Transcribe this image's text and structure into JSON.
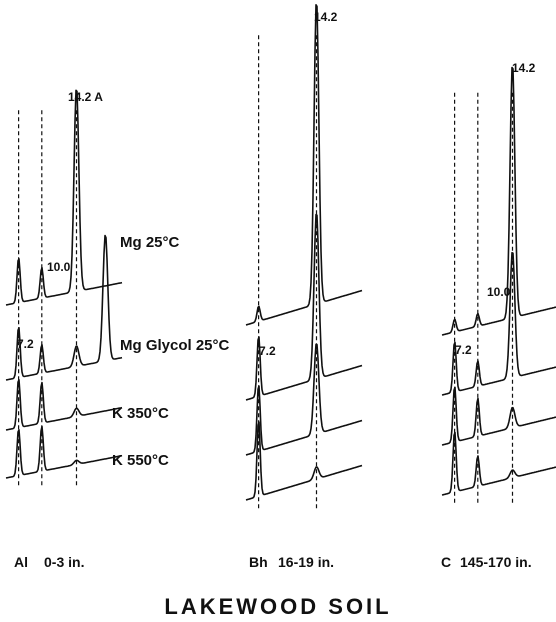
{
  "title": "LAKEWOOD SOIL",
  "treatments": [
    "Mg 25°C",
    "Mg Glycol 25°C",
    "K 350°C",
    "K 550°C"
  ],
  "chart_data": {
    "type": "line",
    "title": "LAKEWOOD SOIL",
    "xlabel": "",
    "ylabel": "",
    "panels": [
      {
        "horizon": "Al",
        "depth": "0-3 in.",
        "peak_labels": [
          "7.2",
          "10.0",
          "14.2 A"
        ],
        "series": [
          {
            "name": "Mg 25°C",
            "peaks": [
              {
                "d": 7.2,
                "rel": 0.22
              },
              {
                "d": 10.0,
                "rel": 0.15
              },
              {
                "d": 14.2,
                "rel": 1.0
              }
            ]
          },
          {
            "name": "Mg Glycol 25°C",
            "peaks": [
              {
                "d": 7.2,
                "rel": 0.25
              },
              {
                "d": 10.0,
                "rel": 0.14
              },
              {
                "d": 14.2,
                "rel": 0.1
              },
              {
                "d": 17.7,
                "rel": 0.62
              }
            ]
          },
          {
            "name": "K 350°C",
            "peaks": [
              {
                "d": 7.2,
                "rel": 0.24
              },
              {
                "d": 10.0,
                "rel": 0.2
              },
              {
                "d": 14.2,
                "rel": 0.04
              }
            ]
          },
          {
            "name": "K 550°C",
            "peaks": [
              {
                "d": 7.2,
                "rel": 0.23
              },
              {
                "d": 10.0,
                "rel": 0.22
              },
              {
                "d": 14.2,
                "rel": 0.02
              }
            ]
          }
        ]
      },
      {
        "horizon": "Bh",
        "depth": "16-19 in.",
        "peak_labels": [
          "7.2",
          "14.2"
        ],
        "series": [
          {
            "name": "Mg 25°C",
            "peaks": [
              {
                "d": 7.2,
                "rel": 0.05
              },
              {
                "d": 14.2,
                "rel": 1.0
              }
            ]
          },
          {
            "name": "Mg Glycol 25°C",
            "peaks": [
              {
                "d": 7.2,
                "rel": 0.2
              },
              {
                "d": 14.2,
                "rel": 0.55
              }
            ]
          },
          {
            "name": "K 350°C",
            "peaks": [
              {
                "d": 7.2,
                "rel": 0.22
              },
              {
                "d": 14.2,
                "rel": 0.3
              }
            ]
          },
          {
            "name": "K 550°C",
            "peaks": [
              {
                "d": 7.2,
                "rel": 0.25
              },
              {
                "d": 14.2,
                "rel": 0.04
              }
            ]
          }
        ]
      },
      {
        "horizon": "C",
        "depth": "145-170 in.",
        "peak_labels": [
          "7.2",
          "10.0",
          "14.2"
        ],
        "series": [
          {
            "name": "Mg 25°C",
            "peaks": [
              {
                "d": 7.2,
                "rel": 0.05
              },
              {
                "d": 10.0,
                "rel": 0.05
              },
              {
                "d": 14.2,
                "rel": 1.0
              }
            ]
          },
          {
            "name": "Mg Glycol 25°C",
            "peaks": [
              {
                "d": 7.2,
                "rel": 0.2
              },
              {
                "d": 10.0,
                "rel": 0.1
              },
              {
                "d": 14.2,
                "rel": 0.5
              }
            ]
          },
          {
            "name": "K 350°C",
            "peaks": [
              {
                "d": 7.2,
                "rel": 0.22
              },
              {
                "d": 10.0,
                "rel": 0.15
              },
              {
                "d": 14.2,
                "rel": 0.08
              }
            ]
          },
          {
            "name": "K 550°C",
            "peaks": [
              {
                "d": 7.2,
                "rel": 0.24
              },
              {
                "d": 10.0,
                "rel": 0.12
              },
              {
                "d": 14.2,
                "rel": 0.03
              }
            ]
          }
        ]
      }
    ]
  }
}
